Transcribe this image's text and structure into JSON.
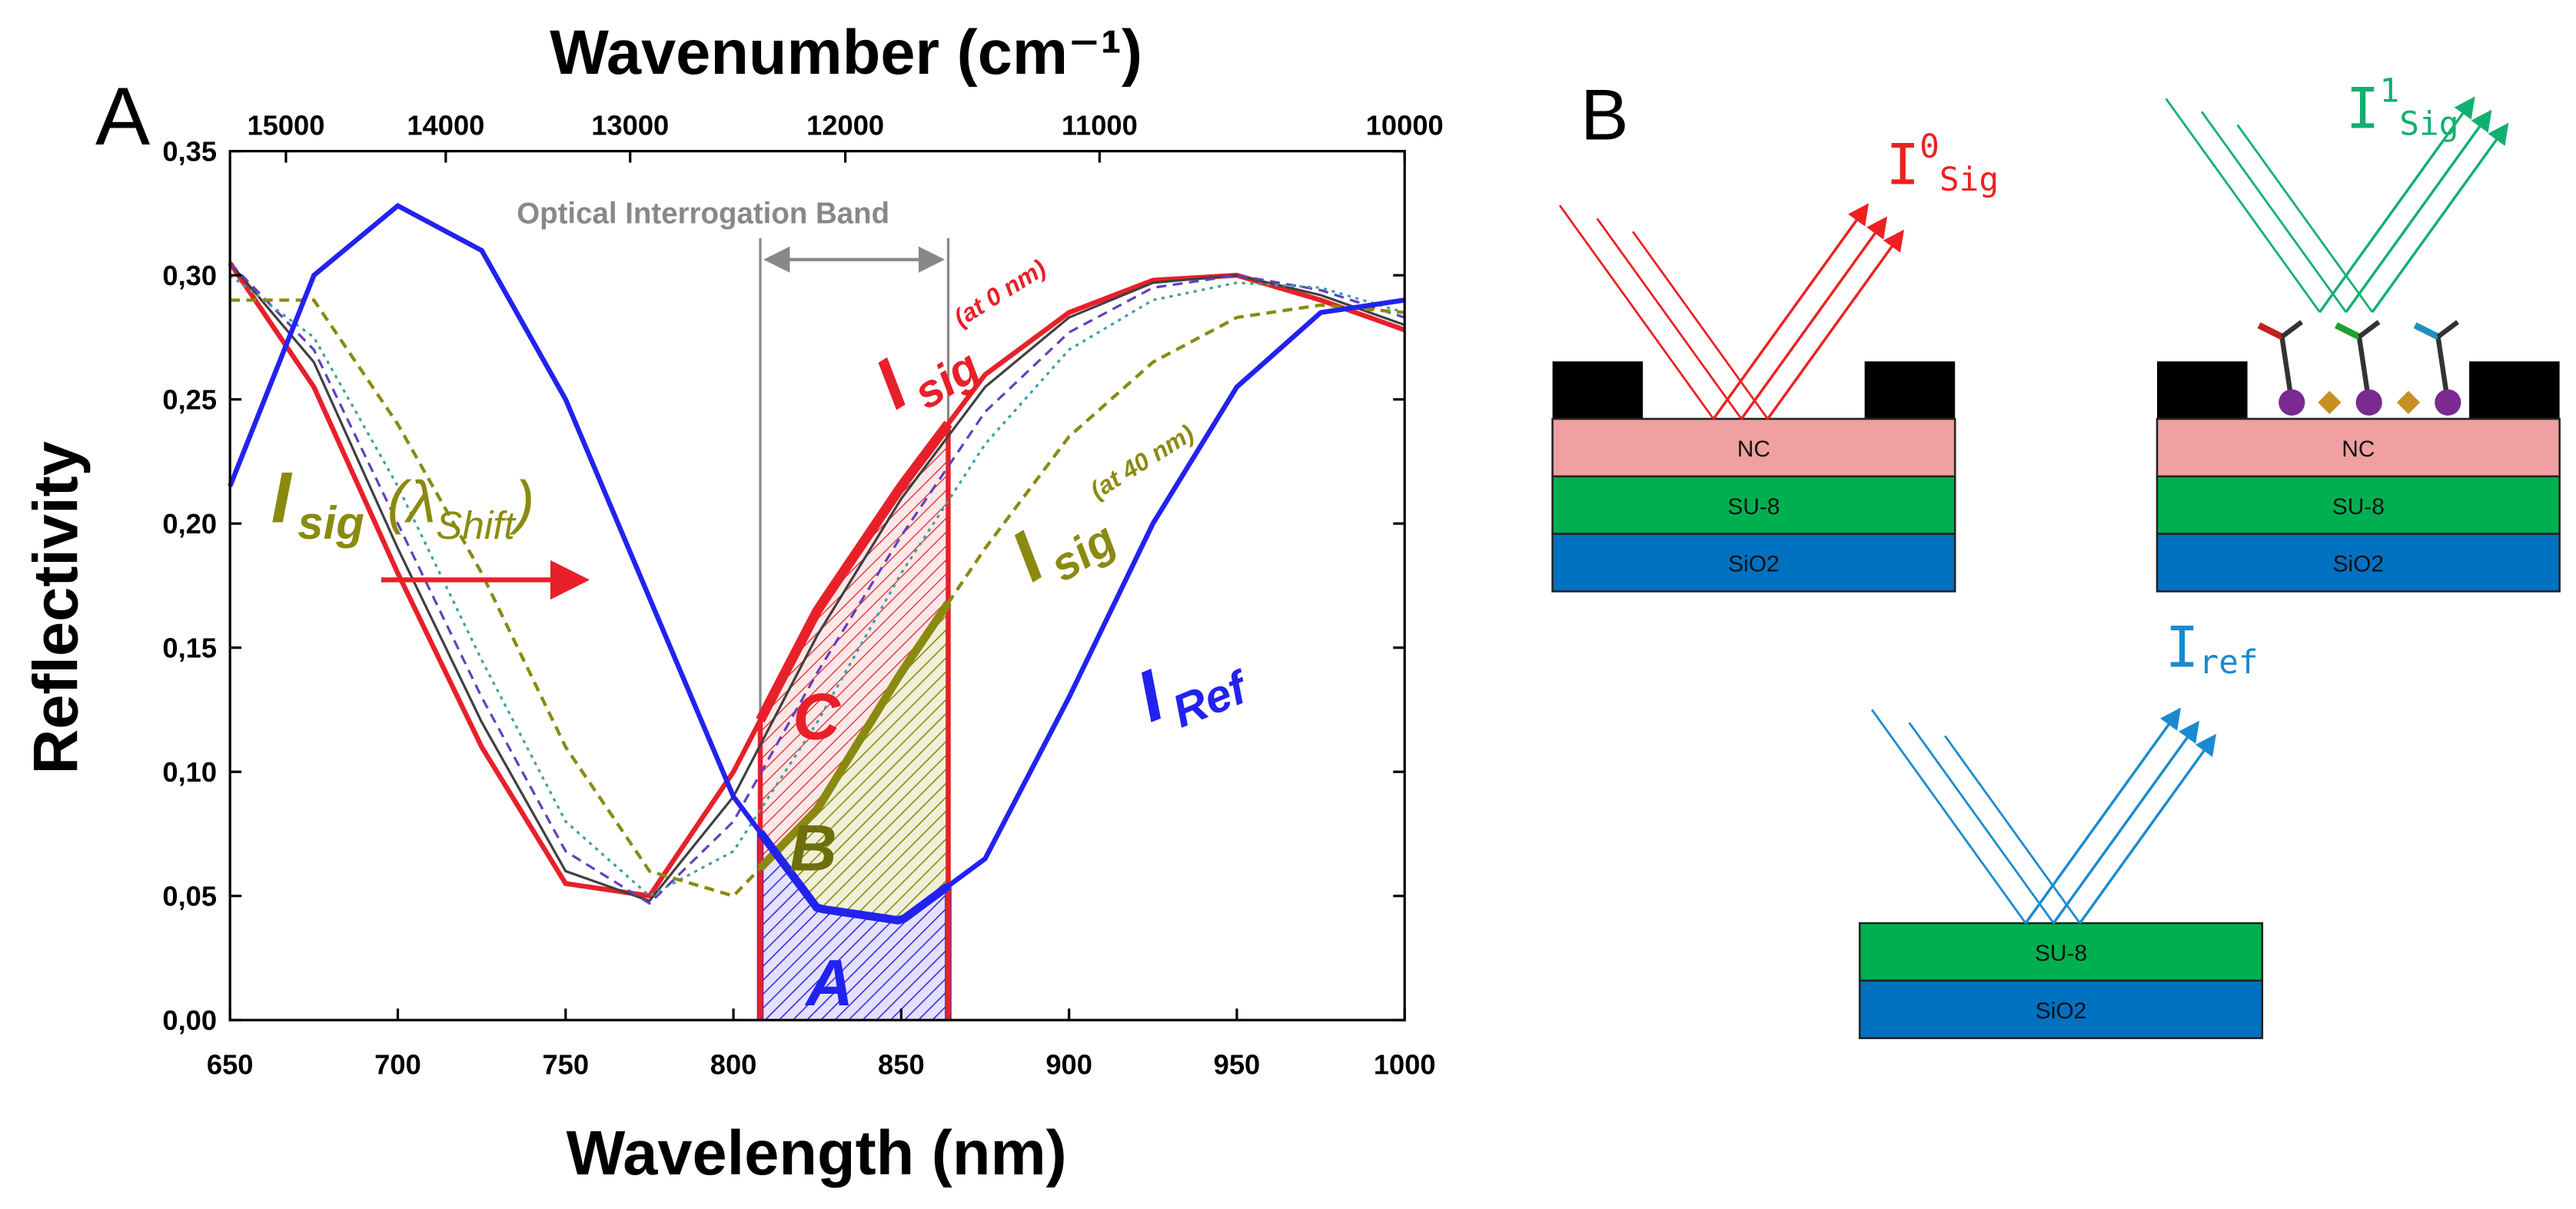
{
  "chart_data": {
    "type": "line",
    "panel_label": "A",
    "title": "Wavenumber (cm⁻¹)",
    "x_label": "Wavelength (nm)",
    "y_label": "Reflectivity",
    "x": [
      650,
      675,
      700,
      725,
      750,
      775,
      800,
      825,
      850,
      875,
      900,
      925,
      950,
      975,
      1000
    ],
    "series": [
      {
        "color": "#e8202a",
        "dash": "solid",
        "width": 3,
        "values": [
          0.305,
          0.255,
          0.18,
          0.11,
          0.055,
          0.05,
          0.1,
          0.165,
          0.215,
          0.26,
          0.285,
          0.298,
          0.3,
          0.29,
          0.278
        ]
      },
      {
        "color": "#404040",
        "dash": "solid",
        "width": 1.5,
        "values": [
          0.305,
          0.265,
          0.19,
          0.12,
          0.06,
          0.048,
          0.09,
          0.155,
          0.21,
          0.255,
          0.283,
          0.297,
          0.3,
          0.292,
          0.28
        ]
      },
      {
        "color": "#6040c0",
        "dash": "dashed",
        "width": 1.5,
        "values": [
          0.305,
          0.27,
          0.2,
          0.13,
          0.068,
          0.047,
          0.08,
          0.14,
          0.195,
          0.245,
          0.277,
          0.295,
          0.3,
          0.294,
          0.283
        ]
      },
      {
        "color": "#40a0a0",
        "dash": "dotted",
        "width": 1.5,
        "values": [
          0.3,
          0.275,
          0.215,
          0.145,
          0.08,
          0.05,
          0.068,
          0.12,
          0.18,
          0.232,
          0.27,
          0.29,
          0.297,
          0.295,
          0.285
        ]
      },
      {
        "color": "#8a8a10",
        "dash": "dashed",
        "width": 2,
        "values": [
          0.29,
          0.29,
          0.24,
          0.18,
          0.11,
          0.06,
          0.05,
          0.085,
          0.14,
          0.19,
          0.235,
          0.265,
          0.283,
          0.288,
          0.285
        ]
      },
      {
        "color": "#2222ee",
        "dash": "solid",
        "width": 3,
        "values": [
          0.215,
          0.3,
          0.328,
          0.31,
          0.25,
          0.17,
          0.09,
          0.045,
          0.04,
          0.065,
          0.13,
          0.2,
          0.255,
          0.285,
          0.29
        ]
      }
    ],
    "xlim": [
      650,
      1000
    ],
    "ylim": [
      0,
      0.35
    ],
    "xticks": [
      650,
      700,
      750,
      800,
      850,
      900,
      950,
      1000
    ],
    "yticks": [
      {
        "value": 0,
        "label": "0,00"
      },
      {
        "value": 0.05,
        "label": "0,05"
      },
      {
        "value": 0.1,
        "label": "0,10"
      },
      {
        "value": 0.15,
        "label": "0,15"
      },
      {
        "value": 0.2,
        "label": "0,20"
      },
      {
        "value": 0.25,
        "label": "0,25"
      },
      {
        "value": 0.3,
        "label": "0,30"
      },
      {
        "value": 0.35,
        "label": "0,35"
      }
    ],
    "x2ticks": [
      15000,
      14000,
      13000,
      12000,
      11000,
      10000
    ],
    "band": [
      808,
      864
    ],
    "band_label": "Optical Interrogation Band",
    "region_labels": [
      "A",
      "B",
      "C"
    ],
    "annotations": [
      {
        "main": "I",
        "sub": "sig",
        "sup": "(at 0 nm)",
        "color": "#e8202a"
      },
      {
        "main": "I",
        "sub": "sig",
        "sup": "(at 40 nm)",
        "color": "#8a8a10"
      },
      {
        "main": "I",
        "sub": "Ref",
        "color": "#2222ee"
      },
      {
        "main": "I",
        "sub": "sig",
        "open": "(λ",
        "open_sub": "Shift",
        "close": ")",
        "color": "#8a8a10"
      }
    ]
  },
  "diagram": {
    "panel_label": "B",
    "stacks": [
      {
        "layers": [
          "NC",
          "SU-8",
          "SiO2"
        ],
        "beam": {
          "main": "I",
          "sup": "0",
          "sub": "Sig",
          "color": "#ee2020"
        }
      },
      {
        "layers": [
          "NC",
          "SU-8",
          "SiO2"
        ],
        "beam": {
          "main": "I",
          "sup": "1",
          "sub": "Sig",
          "color": "#10b070"
        }
      },
      {
        "layers": [
          "SU-8",
          "SiO2"
        ],
        "beam": {
          "main": "I",
          "sub": "ref",
          "color": "#1a8ad0"
        }
      }
    ]
  }
}
